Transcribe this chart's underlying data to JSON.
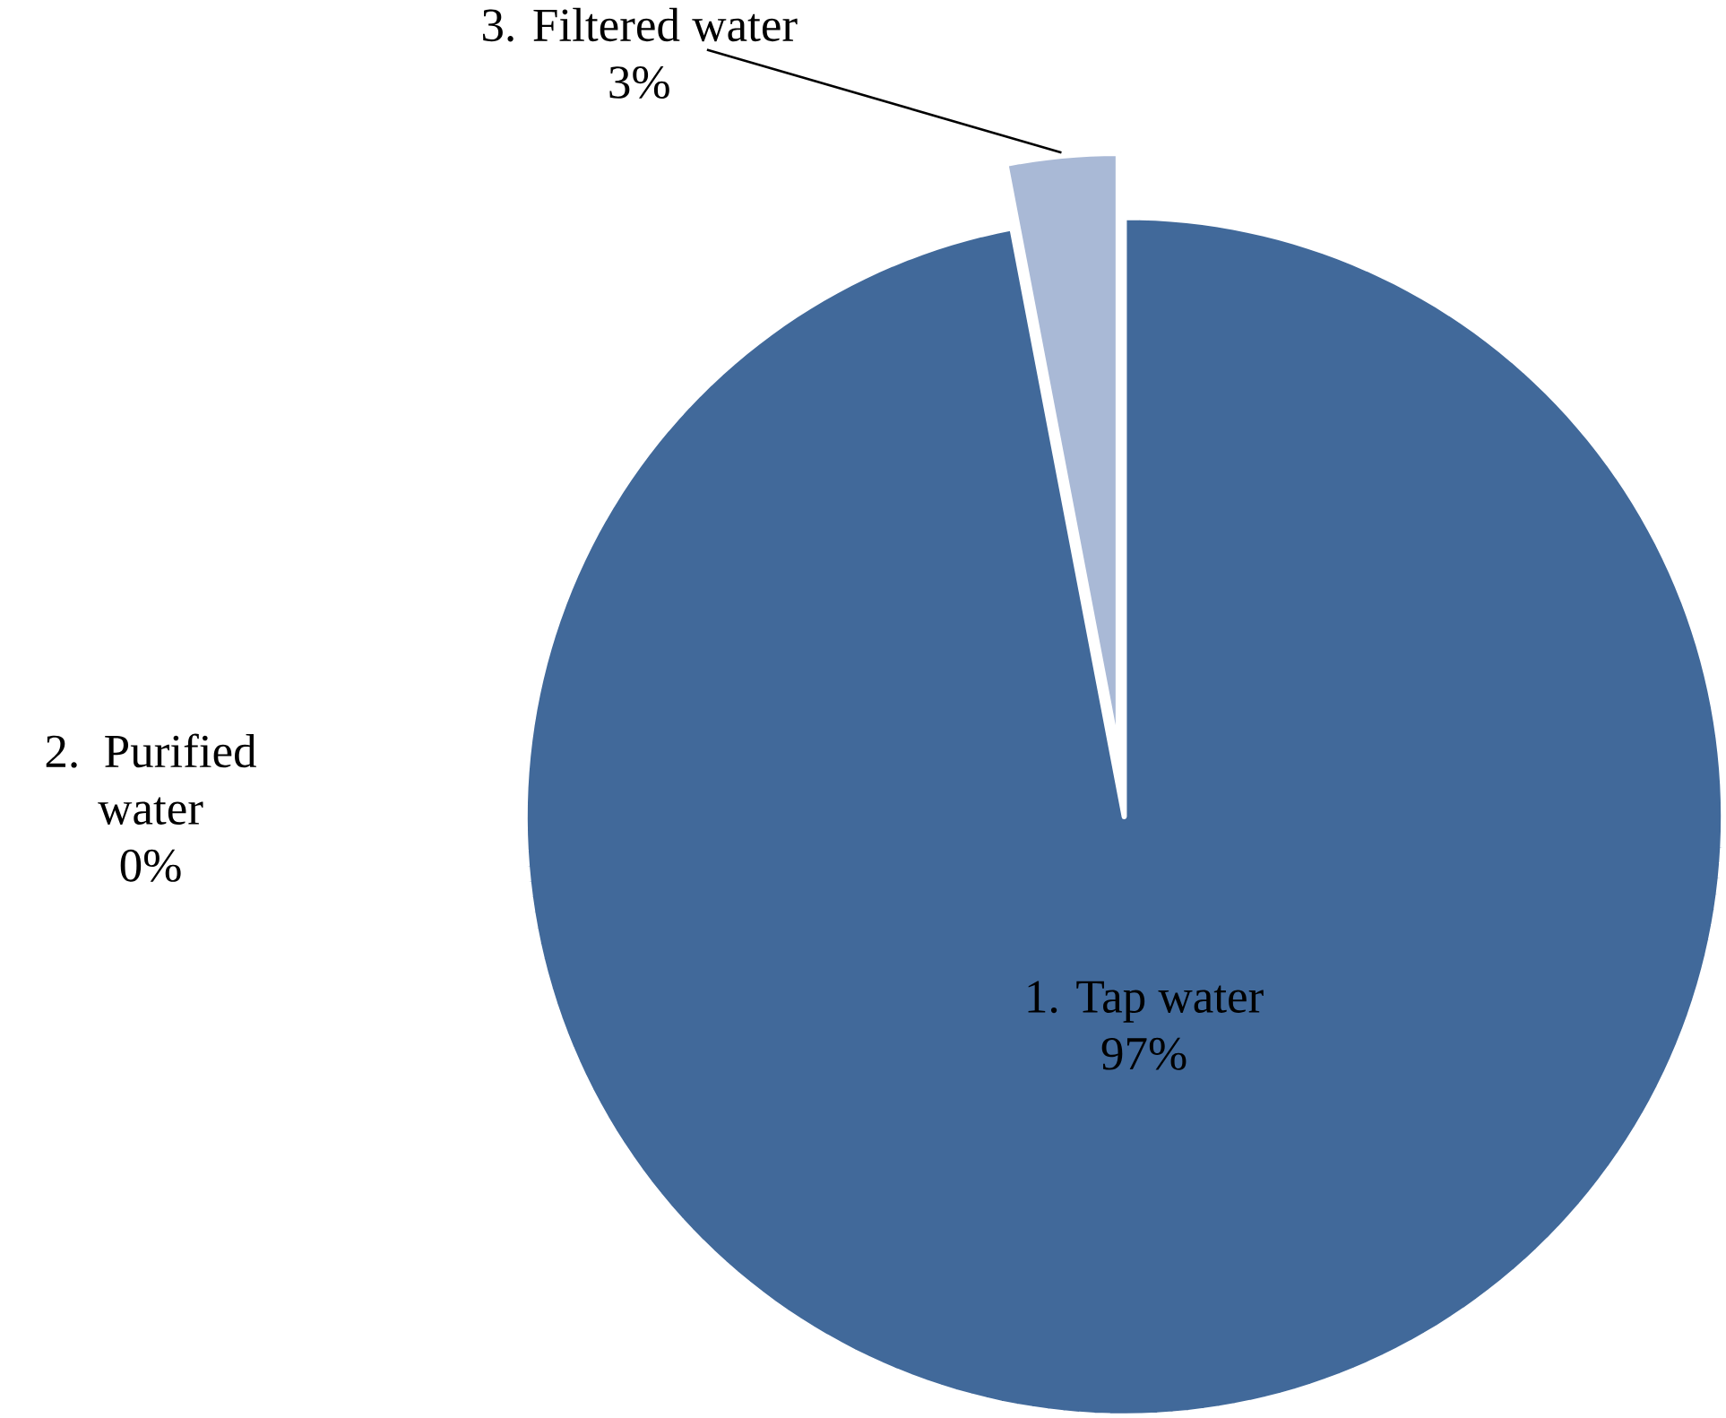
{
  "chart_data": {
    "type": "pie",
    "categories": [
      "1. Tap water",
      "2. Purified water",
      "3. Filtered water"
    ],
    "values": [
      97,
      0,
      3
    ],
    "colors": [
      "#41699a",
      "#5b7fb0",
      "#a9b9d6"
    ],
    "value_labels": [
      "97%",
      "0%",
      "3%"
    ]
  }
}
